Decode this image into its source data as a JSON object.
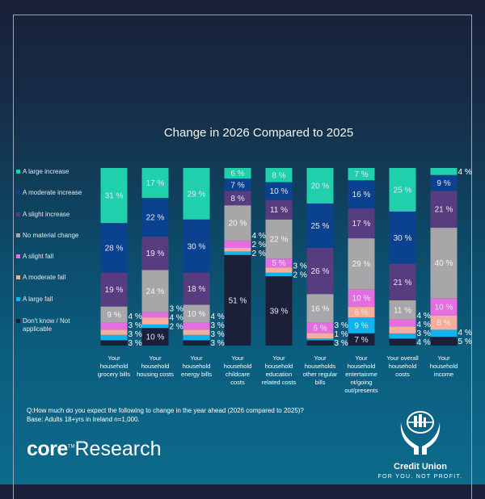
{
  "chart_data": {
    "type": "bar",
    "stacked": true,
    "title": "Change in 2026 Compared to 2025",
    "unit": "%",
    "ylim": [
      0,
      100
    ],
    "grid": false,
    "legend_placement": "left",
    "categories": [
      "Your household grocery bills",
      "Your household housing costs",
      "Your household energy bills",
      "Your household childcare costs",
      "Your household education related costs",
      "Your households other regular bills",
      "Your household entertainme nt/going out/presents",
      "Your overall household costs",
      "Your household income"
    ],
    "series": [
      {
        "name": "Don't know / Not applicable",
        "color": "#1c1f38",
        "values": [
          3,
          10,
          3,
          51,
          39,
          3,
          7,
          4,
          5
        ]
      },
      {
        "name": "A large fall",
        "color": "#12b2ec",
        "values": [
          3,
          2,
          3,
          2,
          2,
          1,
          9,
          3,
          4
        ]
      },
      {
        "name": "A moderate fall",
        "color": "#f5ae9c",
        "values": [
          3,
          4,
          3,
          2,
          3,
          3,
          6,
          4,
          8
        ]
      },
      {
        "name": "A slight fall",
        "color": "#e46ee0",
        "values": [
          4,
          3,
          4,
          4,
          5,
          6,
          10,
          4,
          10
        ]
      },
      {
        "name": "No material change",
        "color": "#a7a7a9",
        "values": [
          9,
          24,
          10,
          20,
          22,
          16,
          29,
          11,
          40
        ]
      },
      {
        "name": "A slight increase",
        "color": "#573c80",
        "values": [
          19,
          19,
          18,
          8,
          11,
          26,
          17,
          21,
          21
        ]
      },
      {
        "name": "A moderate increase",
        "color": "#0b4290",
        "values": [
          28,
          22,
          30,
          7,
          10,
          25,
          16,
          30,
          9
        ]
      },
      {
        "name": "A large increase",
        "color": "#20cfac",
        "values": [
          31,
          17,
          29,
          6,
          8,
          20,
          7,
          25,
          4
        ]
      }
    ]
  },
  "legend_order": [
    "A large increase",
    "A moderate increase",
    "A slight increase",
    "No material change",
    "A slight fall",
    "A moderate fall",
    "A large fall",
    "Don't know / Not applicable"
  ],
  "footer": {
    "question": "Q:How much do you expect the following to change in the year ahead (2026 compared to 2025)?",
    "base": "Base: Adults 18+yrs in Ireland n=1,000.",
    "brand_core": "core",
    "brand_tm": "TM",
    "brand_research": "Research"
  },
  "logo": {
    "name": "Credit Union",
    "tagline": "FOR YOU. NOT PROFIT."
  }
}
